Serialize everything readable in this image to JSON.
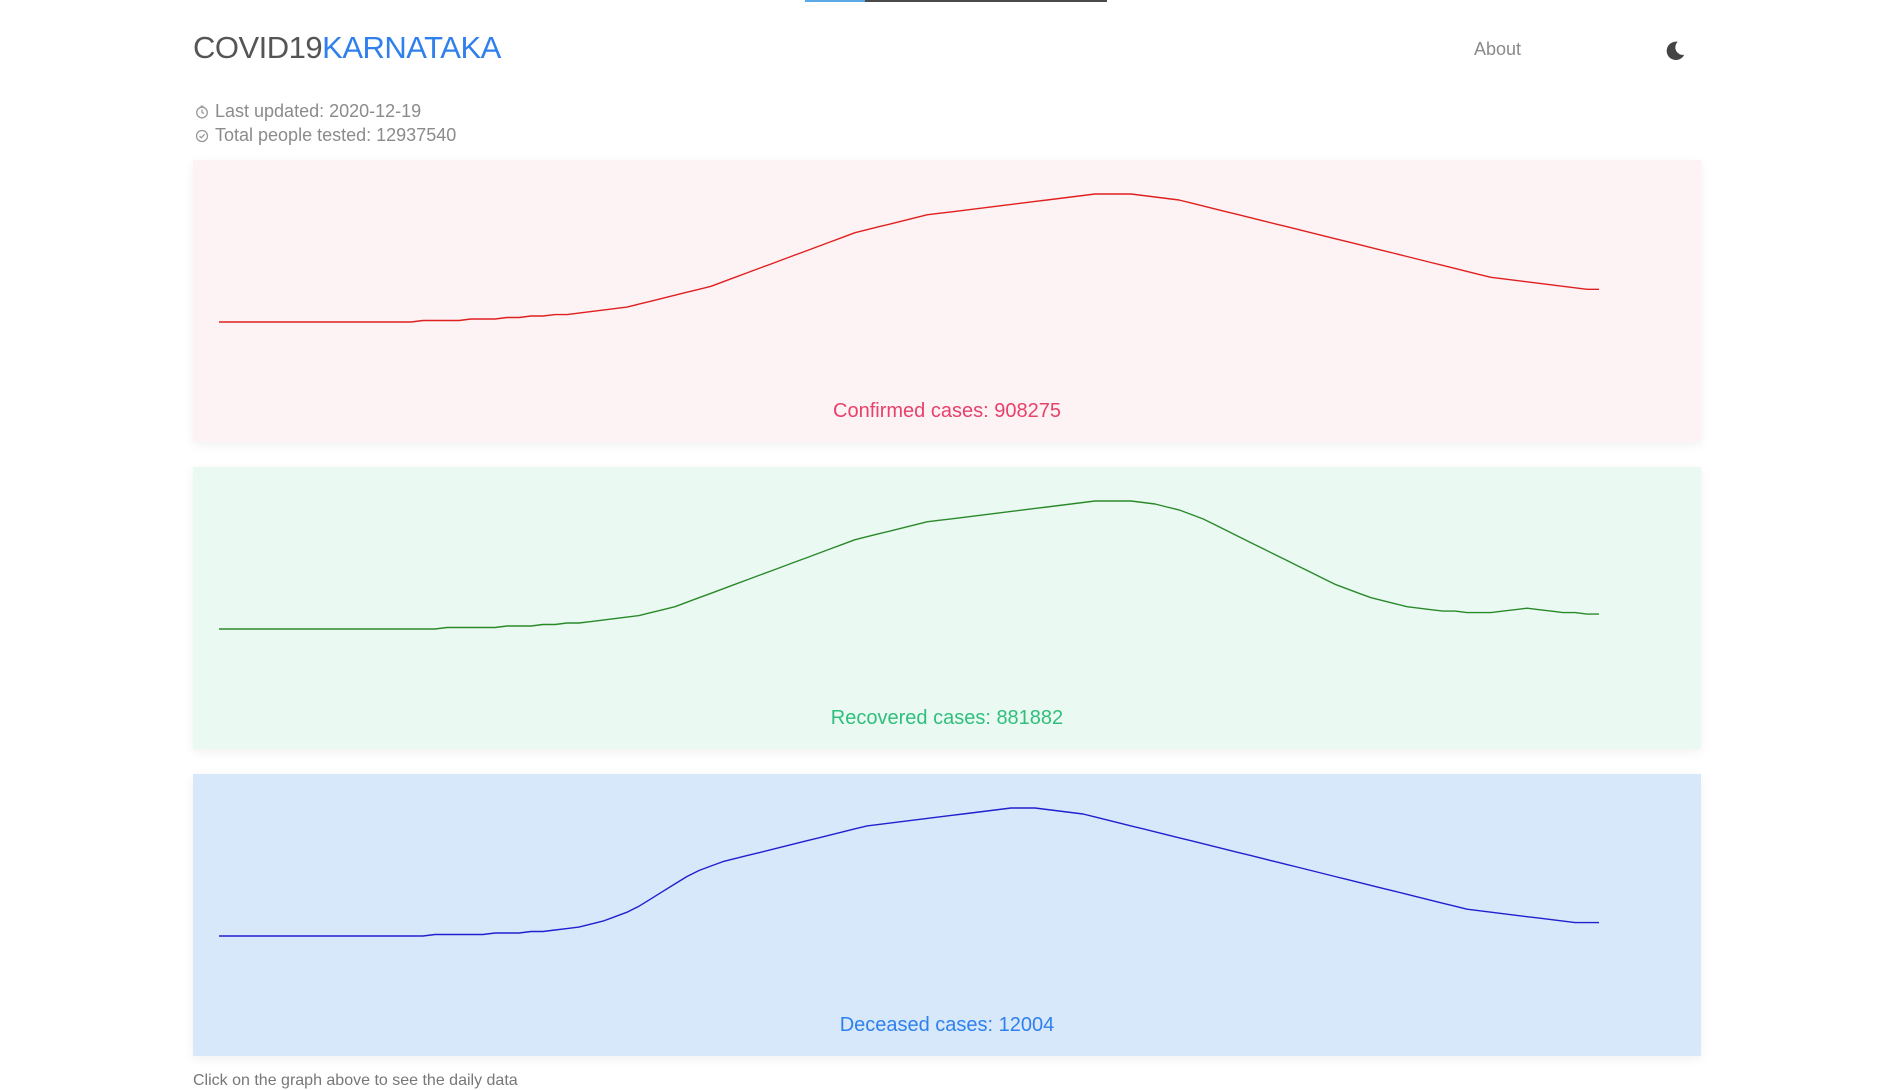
{
  "header": {
    "brand_part1": "COVID19",
    "brand_part2": "KARNATAKA",
    "nav_about": "About",
    "theme_icon": "moon-icon",
    "loading_progress": 0.2
  },
  "meta": {
    "last_updated_label": "Last updated: ",
    "last_updated_value": "2020-12-19",
    "tested_label": "Total people tested: ",
    "tested_value": "12937540"
  },
  "colors": {
    "confirmed_bg": "#fdf2f4",
    "confirmed_line": "#e02020",
    "confirmed_text": "#e8416a",
    "recovered_bg": "#ebf9f3",
    "recovered_line": "#2a8a2a",
    "recovered_text": "#2fbf7a",
    "deceased_bg": "#d7e8fb",
    "deceased_line": "#2020d0",
    "deceased_text": "#2f80ed"
  },
  "cards": [
    {
      "id": "confirmed",
      "label": "Confirmed cases: ",
      "value": "908275"
    },
    {
      "id": "recovered",
      "label": "Recovered cases: ",
      "value": "881882"
    },
    {
      "id": "deceased",
      "label": "Deceased cases: ",
      "value": "12004"
    }
  ],
  "chart_data": [
    {
      "type": "line",
      "series": [
        {
          "values": [
            0,
            0,
            0,
            0,
            0,
            0,
            0,
            0,
            0,
            0,
            0,
            0,
            0,
            0,
            0,
            0,
            0,
            1,
            1,
            1,
            1,
            2,
            2,
            2,
            3,
            3,
            4,
            4,
            5,
            5,
            6,
            7,
            8,
            9,
            10,
            12,
            14,
            16,
            18,
            20,
            22,
            24,
            27,
            30,
            33,
            36,
            39,
            42,
            45,
            48,
            51,
            54,
            57,
            60,
            62,
            64,
            66,
            68,
            70,
            72,
            73,
            74,
            75,
            76,
            77,
            78,
            79,
            80,
            81,
            82,
            83,
            84,
            85,
            86,
            86,
            86,
            86,
            85,
            84,
            83,
            82,
            80,
            78,
            76,
            74,
            72,
            70,
            68,
            66,
            64,
            62,
            60,
            58,
            56,
            54,
            52,
            50,
            48,
            46,
            44,
            42,
            40,
            38,
            36,
            34,
            32,
            30,
            29,
            28,
            27,
            26,
            25,
            24,
            23,
            22,
            22
          ]
        }
      ]
    },
    {
      "type": "line",
      "series": [
        {
          "values": [
            0,
            0,
            0,
            0,
            0,
            0,
            0,
            0,
            0,
            0,
            0,
            0,
            0,
            0,
            0,
            0,
            0,
            0,
            0,
            1,
            1,
            1,
            1,
            1,
            2,
            2,
            2,
            3,
            3,
            4,
            4,
            5,
            6,
            7,
            8,
            9,
            11,
            13,
            15,
            18,
            21,
            24,
            27,
            30,
            33,
            36,
            39,
            42,
            45,
            48,
            51,
            54,
            57,
            60,
            62,
            64,
            66,
            68,
            70,
            72,
            73,
            74,
            75,
            76,
            77,
            78,
            79,
            80,
            81,
            82,
            83,
            84,
            85,
            86,
            86,
            86,
            86,
            85,
            84,
            82,
            80,
            77,
            74,
            70,
            66,
            62,
            58,
            54,
            50,
            46,
            42,
            38,
            34,
            30,
            27,
            24,
            21,
            19,
            17,
            15,
            14,
            13,
            12,
            12,
            11,
            11,
            11,
            12,
            13,
            14,
            13,
            12,
            11,
            11,
            10,
            10
          ]
        }
      ]
    },
    {
      "type": "line",
      "series": [
        {
          "values": [
            0,
            0,
            0,
            0,
            0,
            0,
            0,
            0,
            0,
            0,
            0,
            0,
            0,
            0,
            0,
            0,
            0,
            0,
            1,
            1,
            1,
            1,
            1,
            2,
            2,
            2,
            3,
            3,
            4,
            5,
            6,
            8,
            10,
            13,
            16,
            20,
            25,
            30,
            35,
            40,
            44,
            47,
            50,
            52,
            54,
            56,
            58,
            60,
            62,
            64,
            66,
            68,
            70,
            72,
            74,
            75,
            76,
            77,
            78,
            79,
            80,
            81,
            82,
            83,
            84,
            85,
            86,
            86,
            86,
            85,
            84,
            83,
            82,
            80,
            78,
            76,
            74,
            72,
            70,
            68,
            66,
            64,
            62,
            60,
            58,
            56,
            54,
            52,
            50,
            48,
            46,
            44,
            42,
            40,
            38,
            36,
            34,
            32,
            30,
            28,
            26,
            24,
            22,
            20,
            18,
            17,
            16,
            15,
            14,
            13,
            12,
            11,
            10,
            9,
            9,
            9
          ]
        }
      ]
    }
  ],
  "footer": {
    "note": "Click on the graph above to see the daily data"
  }
}
